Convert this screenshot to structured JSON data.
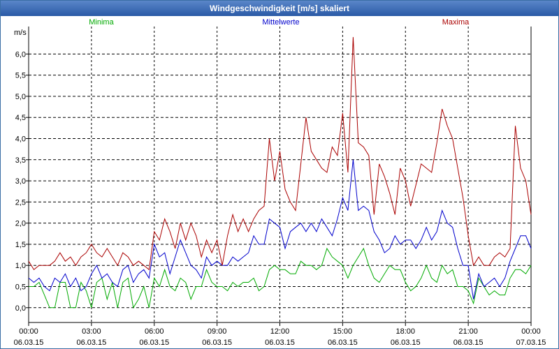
{
  "window": {
    "title": "Windgeschwindigkeit [m/s] skaliert"
  },
  "chart_data": {
    "type": "line",
    "title": "Windgeschwindigkeit [m/s] skaliert",
    "ylabel": "m/s",
    "xlabel": "",
    "ylim": [
      -0.35,
      6.65
    ],
    "xlim": [
      0,
      96
    ],
    "grid": true,
    "y_ticks": [
      {
        "value": 0.0,
        "label": "0,0"
      },
      {
        "value": 0.5,
        "label": "0,5"
      },
      {
        "value": 1.0,
        "label": "1,0"
      },
      {
        "value": 1.5,
        "label": "1,5"
      },
      {
        "value": 2.0,
        "label": "2,0"
      },
      {
        "value": 2.5,
        "label": "2,5"
      },
      {
        "value": 3.0,
        "label": "3,0"
      },
      {
        "value": 3.5,
        "label": "3,5"
      },
      {
        "value": 4.0,
        "label": "4,0"
      },
      {
        "value": 4.5,
        "label": "4,5"
      },
      {
        "value": 5.0,
        "label": "5,0"
      },
      {
        "value": 5.5,
        "label": "5,5"
      },
      {
        "value": 6.0,
        "label": "6,0"
      }
    ],
    "x_ticks": [
      {
        "value": 0,
        "time": "00:00",
        "date": "06.03.15"
      },
      {
        "value": 12,
        "time": "03:00",
        "date": "06.03.15"
      },
      {
        "value": 24,
        "time": "06:00",
        "date": "06.03.15"
      },
      {
        "value": 36,
        "time": "09:00",
        "date": "06.03.15"
      },
      {
        "value": 48,
        "time": "12:00",
        "date": "06.03.15"
      },
      {
        "value": 60,
        "time": "15:00",
        "date": "06.03.15"
      },
      {
        "value": 72,
        "time": "18:00",
        "date": "06.03.15"
      },
      {
        "value": 84,
        "time": "21:00",
        "date": "06.03.15"
      },
      {
        "value": 96,
        "time": "00:00",
        "date": "07.03.15"
      }
    ],
    "legend": {
      "placement": "top"
    },
    "series": [
      {
        "name": "Minima",
        "color": "#00aa00",
        "values": [
          0.5,
          0.5,
          0.6,
          0.3,
          0.0,
          0.0,
          0.6,
          0.6,
          0.0,
          0.0,
          0.6,
          0.4,
          0.0,
          0.6,
          0.7,
          0.2,
          0.6,
          0.0,
          0.6,
          0.7,
          0.0,
          0.2,
          0.5,
          0.0,
          0.7,
          0.5,
          0.9,
          0.5,
          0.4,
          0.7,
          0.6,
          0.2,
          0.5,
          0.5,
          0.9,
          0.6,
          0.5,
          0.5,
          0.4,
          0.6,
          0.5,
          0.6,
          0.6,
          0.7,
          0.4,
          0.5,
          0.9,
          1.0,
          0.9,
          0.9,
          0.8,
          0.8,
          1.1,
          1.0,
          1.0,
          0.9,
          1.0,
          1.4,
          1.2,
          1.1,
          1.0,
          0.7,
          1.0,
          1.2,
          1.4,
          1.0,
          0.7,
          0.6,
          0.8,
          1.0,
          0.9,
          0.9,
          0.6,
          0.4,
          0.5,
          0.7,
          1.0,
          0.7,
          0.6,
          1.0,
          0.8,
          0.9,
          0.5,
          0.5,
          0.4,
          0.1,
          0.7,
          0.5,
          0.3,
          0.4,
          0.3,
          0.3,
          0.7,
          0.9,
          0.9,
          0.8,
          1.0
        ],
        "value_labels_shown": false
      },
      {
        "name": "Mittelwerte",
        "color": "#0000cc",
        "values": [
          0.7,
          0.6,
          0.7,
          0.5,
          0.4,
          0.7,
          0.6,
          0.8,
          0.5,
          0.7,
          0.4,
          0.5,
          0.8,
          1.0,
          0.7,
          0.8,
          0.6,
          0.5,
          0.9,
          1.0,
          0.6,
          0.8,
          0.9,
          0.7,
          1.5,
          1.2,
          1.3,
          0.8,
          1.2,
          1.6,
          1.3,
          1.0,
          0.9,
          0.7,
          1.2,
          1.0,
          1.1,
          1.0,
          1.0,
          1.2,
          1.1,
          1.2,
          1.3,
          1.7,
          1.5,
          1.5,
          2.1,
          2.0,
          1.9,
          1.4,
          1.8,
          1.9,
          2.0,
          1.8,
          2.0,
          1.8,
          2.1,
          1.9,
          1.7,
          2.1,
          2.6,
          2.3,
          3.5,
          2.3,
          2.4,
          2.3,
          1.8,
          1.6,
          1.3,
          1.4,
          1.7,
          1.5,
          1.6,
          1.6,
          1.4,
          1.6,
          1.9,
          1.6,
          1.8,
          2.3,
          2.0,
          1.9,
          1.4,
          1.0,
          1.0,
          0.2,
          0.8,
          0.5,
          0.6,
          0.7,
          0.5,
          0.7,
          1.1,
          1.4,
          1.7,
          1.7,
          1.4
        ],
        "value_labels_shown": false
      },
      {
        "name": "Maxima",
        "color": "#aa0000",
        "values": [
          1.1,
          0.9,
          1.0,
          1.0,
          1.0,
          1.1,
          1.3,
          1.1,
          1.2,
          1.0,
          1.2,
          1.3,
          1.5,
          1.3,
          1.2,
          1.4,
          1.2,
          1.0,
          1.3,
          1.2,
          1.0,
          1.1,
          1.0,
          0.9,
          1.8,
          1.6,
          2.1,
          1.8,
          1.4,
          2.0,
          1.6,
          2.0,
          1.7,
          1.2,
          1.6,
          1.3,
          1.6,
          1.0,
          1.7,
          2.2,
          1.8,
          2.1,
          1.8,
          2.1,
          2.3,
          2.4,
          4.0,
          3.0,
          3.7,
          2.8,
          2.5,
          2.3,
          3.4,
          4.5,
          3.7,
          3.5,
          3.3,
          3.2,
          3.8,
          3.6,
          4.6,
          3.2,
          6.4,
          3.9,
          3.8,
          3.6,
          2.2,
          3.4,
          3.1,
          2.7,
          2.2,
          3.3,
          3.0,
          2.4,
          2.9,
          3.4,
          3.3,
          3.2,
          3.9,
          4.7,
          4.3,
          4.0,
          3.3,
          2.6,
          1.7,
          1.0,
          1.2,
          1.0,
          1.0,
          1.2,
          1.3,
          1.2,
          1.4,
          4.3,
          3.3,
          3.0,
          2.2
        ],
        "value_labels_shown": false
      }
    ]
  }
}
